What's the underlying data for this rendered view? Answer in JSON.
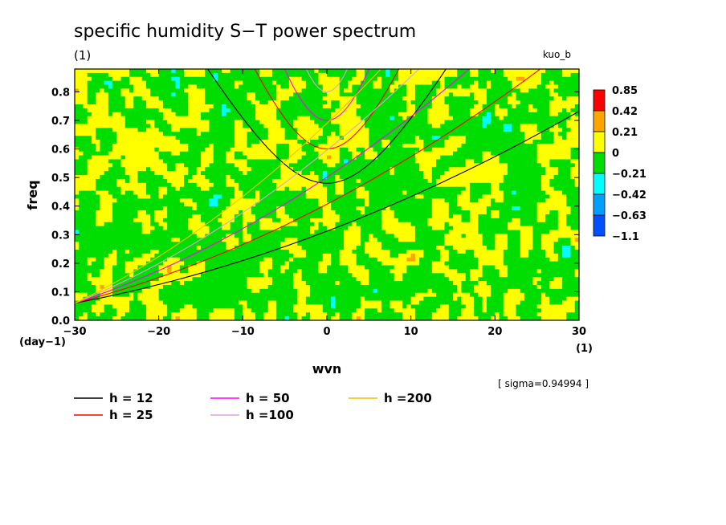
{
  "chart_data": {
    "type": "heatmap",
    "title": "specific humidity S−T power spectrum",
    "subtitle_left": "(1)",
    "subtitle_right": "kuo_b",
    "xlabel": "wvn",
    "ylabel": "freq",
    "x_unit": "(1)",
    "y_unit": "(day−1)",
    "xlim": [
      -30,
      30
    ],
    "ylim": [
      0,
      0.88
    ],
    "x_ticks": [
      "−30",
      "−20",
      "−10",
      "0",
      "10",
      "20",
      "30"
    ],
    "x_tick_values": [
      -30,
      -20,
      -10,
      0,
      10,
      20,
      30
    ],
    "y_ticks": [
      "0.0",
      "0.1",
      "0.2",
      "0.3",
      "0.4",
      "0.5",
      "0.6",
      "0.7",
      "0.8"
    ],
    "y_tick_values": [
      0,
      0.1,
      0.2,
      0.3,
      0.4,
      0.5,
      0.6,
      0.7,
      0.8
    ],
    "annotation": "[ sigma=0.94994 ]",
    "colorbar": {
      "labels": [
        "0.85",
        "0.42",
        "0.21",
        "0",
        "−0.21",
        "−0.42",
        "−0.63",
        "−1.1"
      ],
      "colors": [
        "#ff0000",
        "#ffa500",
        "#ffff00",
        "#00dd00",
        "#00ffff",
        "#00a0ff",
        "#0050ff"
      ]
    },
    "field_colors": {
      "green": "#00dd00",
      "yellow": "#ffff00",
      "orange": "#ffa500",
      "cyan": "#00ffff",
      "blue": "#00a0ff"
    },
    "dispersion_curves": [
      {
        "name": "h = 12",
        "h": 12,
        "color": "#000000"
      },
      {
        "name": "h = 25",
        "h": 25,
        "color": "#ff0000"
      },
      {
        "name": "h = 50",
        "h": 50,
        "color": "#ff00ff"
      },
      {
        "name": "h =100",
        "h": 100,
        "color": "#e0a0e0"
      },
      {
        "name": "h =200",
        "h": 200,
        "color": "#f0c000"
      }
    ]
  }
}
